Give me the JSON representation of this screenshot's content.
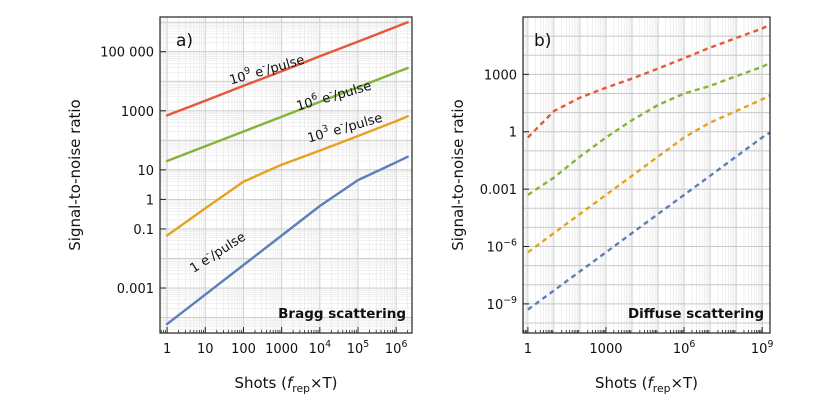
{
  "chart_data": [
    {
      "type": "line",
      "panel_label": "a)",
      "annotation": "Bragg scattering",
      "xlabel": "Shots (f_rep×T)",
      "ylabel": "Signal-to-noise ratio",
      "xscale": "log",
      "yscale": "log",
      "xlim": [
        0.65,
        2600000
      ],
      "ylim": [
        3e-05,
        1500000
      ],
      "xticks": [
        {
          "v": 1,
          "label": "1"
        },
        {
          "v": 10,
          "label": "10"
        },
        {
          "v": 100,
          "label": "100"
        },
        {
          "v": 1000,
          "label": "1000"
        },
        {
          "v": 10000,
          "base": "10",
          "exp": "4"
        },
        {
          "v": 100000,
          "base": "10",
          "exp": "5"
        },
        {
          "v": 1000000,
          "base": "10",
          "exp": "6"
        }
      ],
      "yticks": [
        {
          "v": 0.001,
          "label": "0.001"
        },
        {
          "v": 0.1,
          "label": "0.1"
        },
        {
          "v": 1,
          "label": "1"
        },
        {
          "v": 10,
          "label": "10"
        },
        {
          "v": 1000,
          "label": "1000"
        },
        {
          "v": 100000,
          "label": "100 000"
        }
      ],
      "series": [
        {
          "name": "10^9 e-/pulse",
          "color": "#e8573a",
          "style": "solid",
          "x": [
            1,
            10,
            100,
            1000,
            10000,
            100000,
            1000000,
            2000000
          ],
          "y": [
            700,
            2200,
            7000,
            22000,
            70000,
            220000,
            700000,
            1000000
          ]
        },
        {
          "name": "10^6 e-/pulse",
          "color": "#82b536",
          "style": "solid",
          "x": [
            1,
            10,
            100,
            1000,
            10000,
            100000,
            1000000,
            2000000
          ],
          "y": [
            20,
            63,
            200,
            630,
            2000,
            6300,
            20000,
            28000
          ]
        },
        {
          "name": "10^3 e-/pulse",
          "color": "#e6a21e",
          "style": "solid",
          "x": [
            1,
            10,
            100,
            1000,
            10000,
            100000,
            1000000,
            2000000
          ],
          "y": [
            0.06,
            0.5,
            4,
            15,
            45,
            140,
            450,
            650
          ]
        },
        {
          "name": "1 e-/pulse",
          "color": "#5b80b8",
          "style": "solid",
          "x": [
            1,
            10,
            100,
            1000,
            10000,
            100000,
            1000000,
            2000000
          ],
          "y": [
            6e-05,
            0.0006,
            0.006,
            0.06,
            0.6,
            4.5,
            18,
            28
          ]
        }
      ],
      "labels": [
        {
          "series": "10^9 e-/pulse",
          "base": "10",
          "exp": "9",
          "unit": "e",
          "unitsup": "-",
          "suffix": "/pulse"
        },
        {
          "series": "10^6 e-/pulse",
          "base": "10",
          "exp": "6",
          "unit": "e",
          "unitsup": "-",
          "suffix": "/pulse"
        },
        {
          "series": "10^3 e-/pulse",
          "base": "10",
          "exp": "3",
          "unit": "e",
          "unitsup": "-",
          "suffix": "/pulse"
        },
        {
          "series": "1 e-/pulse",
          "base": "1",
          "exp": "",
          "unit": "e",
          "unitsup": "-",
          "suffix": "/pulse"
        }
      ]
    },
    {
      "type": "line",
      "panel_label": "b)",
      "annotation": "Diffuse scattering",
      "xlabel": "Shots (f_rep×T)",
      "ylabel": "Signal-to-noise ratio",
      "xscale": "log",
      "yscale": "log",
      "xlim": [
        0.65,
        2000000000
      ],
      "ylim": [
        3e-11,
        1000000
      ],
      "xticks": [
        {
          "v": 1,
          "label": "1"
        },
        {
          "v": 1000,
          "label": "1000"
        },
        {
          "v": 1000000,
          "base": "10",
          "exp": "6"
        },
        {
          "v": 1000000000,
          "base": "10",
          "exp": "9"
        }
      ],
      "yticks": [
        {
          "v": 1e-09,
          "base": "10",
          "exp": "−9"
        },
        {
          "v": 1e-06,
          "base": "10",
          "exp": "−6"
        },
        {
          "v": 0.001,
          "label": "0.001"
        },
        {
          "v": 1,
          "label": "1"
        },
        {
          "v": 1000,
          "label": "1000"
        }
      ],
      "series": [
        {
          "name": "10^9 e-/pulse",
          "color": "#e8573a",
          "style": "dashed",
          "x": [
            1,
            10,
            100,
            1000,
            10000,
            100000,
            1000000,
            10000000,
            100000000,
            1000000000,
            2000000000
          ],
          "y": [
            0.5,
            12,
            60,
            200,
            600,
            2000,
            7000,
            25000,
            80000,
            250000,
            400000
          ]
        },
        {
          "name": "10^6 e-/pulse",
          "color": "#82b536",
          "style": "dashed",
          "x": [
            1,
            10,
            100,
            1000,
            10000,
            100000,
            1000000,
            10000000,
            100000000,
            1000000000,
            2000000000
          ],
          "y": [
            0.0005,
            0.004,
            0.05,
            0.5,
            4,
            25,
            100,
            250,
            800,
            2500,
            4000
          ]
        },
        {
          "name": "10^3 e-/pulse",
          "color": "#e6a21e",
          "style": "dashed",
          "x": [
            1,
            10,
            100,
            1000,
            10000,
            100000,
            1000000,
            10000000,
            100000000,
            1000000000,
            2000000000
          ],
          "y": [
            5e-07,
            5e-06,
            5e-05,
            0.0005,
            0.005,
            0.05,
            0.5,
            3,
            12,
            50,
            80
          ]
        },
        {
          "name": "1 e-/pulse",
          "color": "#5b80b8",
          "style": "dashed",
          "x": [
            1,
            10,
            100,
            1000,
            10000,
            100000,
            1000000,
            10000000,
            100000000,
            1000000000,
            2000000000
          ],
          "y": [
            5e-10,
            5e-09,
            5e-08,
            5e-07,
            5e-06,
            5e-05,
            0.0005,
            0.005,
            0.05,
            0.5,
            0.9
          ]
        }
      ]
    }
  ]
}
